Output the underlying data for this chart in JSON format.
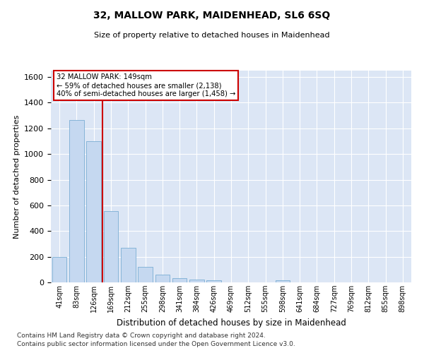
{
  "title1": "32, MALLOW PARK, MAIDENHEAD, SL6 6SQ",
  "title2": "Size of property relative to detached houses in Maidenhead",
  "xlabel": "Distribution of detached houses by size in Maidenhead",
  "ylabel": "Number of detached properties",
  "categories": [
    "41sqm",
    "83sqm",
    "126sqm",
    "169sqm",
    "212sqm",
    "255sqm",
    "298sqm",
    "341sqm",
    "384sqm",
    "426sqm",
    "469sqm",
    "512sqm",
    "555sqm",
    "598sqm",
    "641sqm",
    "684sqm",
    "727sqm",
    "769sqm",
    "812sqm",
    "855sqm",
    "898sqm"
  ],
  "values": [
    200,
    1265,
    1100,
    555,
    270,
    120,
    60,
    33,
    22,
    15,
    0,
    0,
    0,
    14,
    0,
    0,
    0,
    0,
    0,
    0,
    0
  ],
  "bar_color": "#c5d8f0",
  "bar_edge_color": "#7aadd4",
  "vline_x": 2.5,
  "vline_color": "#cc0000",
  "annotation_line1": "32 MALLOW PARK: 149sqm",
  "annotation_line2": "← 59% of detached houses are smaller (2,138)",
  "annotation_line3": "40% of semi-detached houses are larger (1,458) →",
  "annotation_box_color": "#ffffff",
  "annotation_box_edge": "#cc0000",
  "ylim": [
    0,
    1650
  ],
  "yticks": [
    0,
    200,
    400,
    600,
    800,
    1000,
    1200,
    1400,
    1600
  ],
  "background_color": "#dce6f5",
  "grid_color": "#ffffff",
  "footer1": "Contains HM Land Registry data © Crown copyright and database right 2024.",
  "footer2": "Contains public sector information licensed under the Open Government Licence v3.0."
}
